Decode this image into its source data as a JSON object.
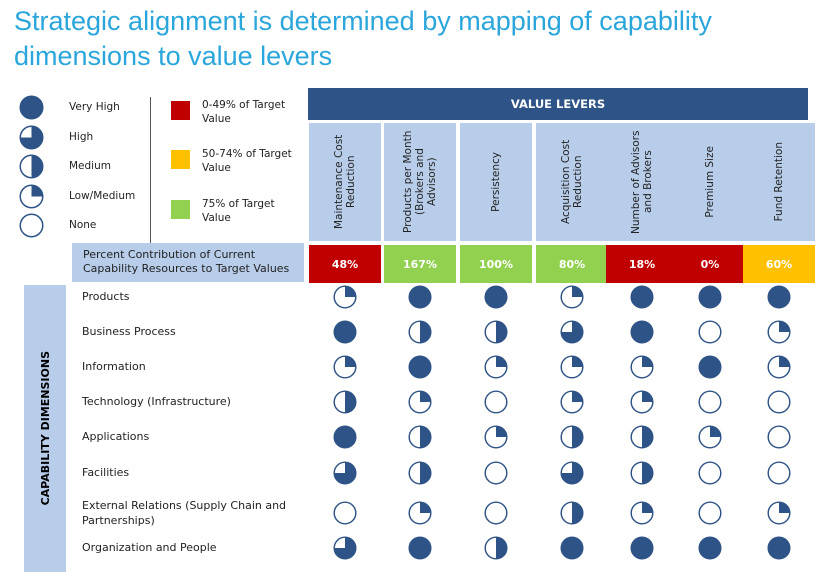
{
  "title": "Strategic alignment is determined by mapping of capability dimensions to value levers",
  "legend": {
    "levels": [
      {
        "label": "Very High",
        "level": 1.0
      },
      {
        "label": "High",
        "level": 0.75
      },
      {
        "label": "Medium",
        "level": 0.5
      },
      {
        "label": "Low/Medium",
        "level": 0.25
      },
      {
        "label": "None",
        "level": 0
      }
    ],
    "targets": [
      {
        "label": "0-49% of Target Value",
        "color": "#c00000"
      },
      {
        "label": "50-74% of Target Value",
        "color": "#ffc000"
      },
      {
        "label": "75% of Target Value",
        "color": "#92d050"
      }
    ]
  },
  "value_levers_header": "VALUE LEVERS",
  "capability_dimensions_label": "CAPABILITY DIMENSIONS",
  "percent_label": "Percent Contribution of Current Capability Resources to Target Values",
  "columns": [
    {
      "label": "Maintenance Cost Reduction",
      "percent": "48%",
      "color": "#c00000"
    },
    {
      "label": "Products per Month (Brokers and Advisors)",
      "percent": "167%",
      "color": "#92d050"
    },
    {
      "label": "Persistency",
      "percent": "100%",
      "color": "#92d050"
    },
    {
      "label": "Acquisition Cost Reduction",
      "percent": "80%",
      "color": "#92d050"
    },
    {
      "label": "Number of Advisors and Brokers",
      "percent": "18%",
      "color": "#c00000"
    },
    {
      "label": "Premium Size",
      "percent": "0%",
      "color": "#c00000"
    },
    {
      "label": "Fund Retention",
      "percent": "60%",
      "color": "#ffc000"
    }
  ],
  "rows": [
    {
      "label": "Products",
      "levels": [
        0.25,
        1,
        1,
        0.25,
        1,
        1,
        1
      ]
    },
    {
      "label": "Business Process",
      "levels": [
        1,
        0.5,
        0.5,
        0.75,
        1,
        0,
        0.25
      ]
    },
    {
      "label": "Information",
      "levels": [
        0.25,
        1,
        0.25,
        0.25,
        0.25,
        1,
        0.25
      ]
    },
    {
      "label": "Technology (Infrastructure)",
      "levels": [
        0.5,
        0.25,
        0,
        0.25,
        0.25,
        0,
        0
      ]
    },
    {
      "label": "Applications",
      "levels": [
        1,
        0.5,
        0.25,
        0.5,
        0.5,
        0.25,
        0
      ]
    },
    {
      "label": "Facilities",
      "levels": [
        0.75,
        0.5,
        0,
        0.75,
        0.5,
        0,
        0
      ]
    },
    {
      "label": "External Relations (Supply Chain and Partnerships)",
      "levels": [
        0,
        0.25,
        0,
        0.5,
        0.25,
        0,
        0.25
      ]
    },
    {
      "label": "Organization and People",
      "levels": [
        0.75,
        1,
        0.5,
        1,
        1,
        1,
        1
      ]
    }
  ],
  "colors": {
    "ball": "#2e5387",
    "header": "#2e5387",
    "cell_bg": "#b8cdea",
    "title": "#2aa6dc"
  }
}
